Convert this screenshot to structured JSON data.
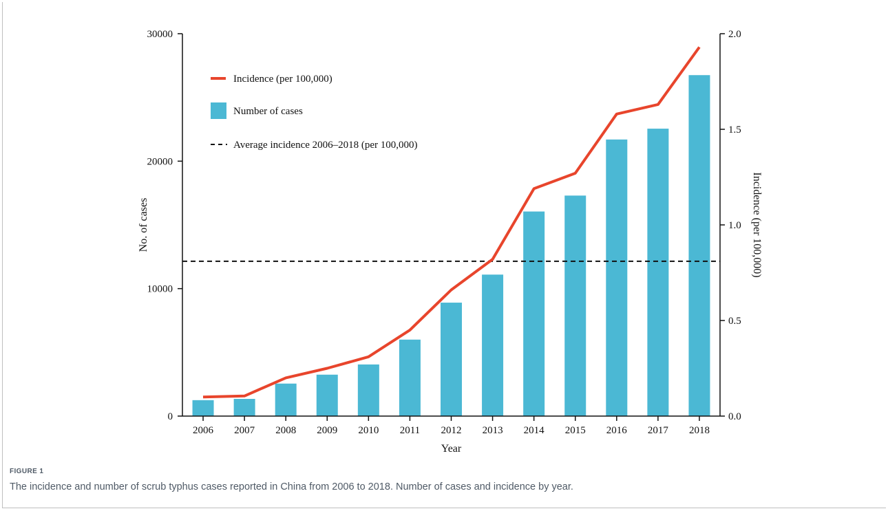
{
  "figure": {
    "label": "FIGURE 1",
    "caption": "The incidence and number of scrub typhus cases reported in China from 2006 to 2018. Number of cases and incidence by year."
  },
  "colors": {
    "bars": "#4bb8d4",
    "line": "#e8452c",
    "dashed": "#111111",
    "axis": "#111111"
  },
  "chart_data": {
    "type": "bar",
    "categories": [
      "2006",
      "2007",
      "2008",
      "2009",
      "2010",
      "2011",
      "2012",
      "2013",
      "2014",
      "2015",
      "2016",
      "2017",
      "2018"
    ],
    "series": [
      {
        "name": "Number of cases",
        "type": "bar",
        "axis": "left",
        "values": [
          1250,
          1350,
          2550,
          3250,
          4050,
          6000,
          8900,
          11100,
          16050,
          17300,
          21700,
          22550,
          26750
        ]
      },
      {
        "name": "Incidence (per 100,000)",
        "type": "line",
        "axis": "right",
        "values": [
          0.1,
          0.105,
          0.2,
          0.25,
          0.31,
          0.45,
          0.66,
          0.82,
          1.19,
          1.27,
          1.58,
          1.63,
          1.93
        ]
      },
      {
        "name": "Average incidence 2006–2018 (per 100,000)",
        "type": "reference-line",
        "axis": "right",
        "value": 0.81
      }
    ],
    "xlabel": "Year",
    "ylabel": "No. of cases",
    "y2label": "Incidence (per 100,000)",
    "ylim": [
      0,
      30000
    ],
    "y2lim": [
      0,
      2.0
    ],
    "yticks": [
      "0",
      "10000",
      "20000",
      "30000"
    ],
    "yticks_values": [
      0,
      10000,
      20000,
      30000
    ],
    "y2ticks": [
      "0.0",
      "0.5",
      "1.0",
      "1.5",
      "2.0"
    ],
    "y2ticks_values": [
      0,
      0.5,
      1.0,
      1.5,
      2.0
    ],
    "grid": false,
    "legend_position": "top-left"
  }
}
